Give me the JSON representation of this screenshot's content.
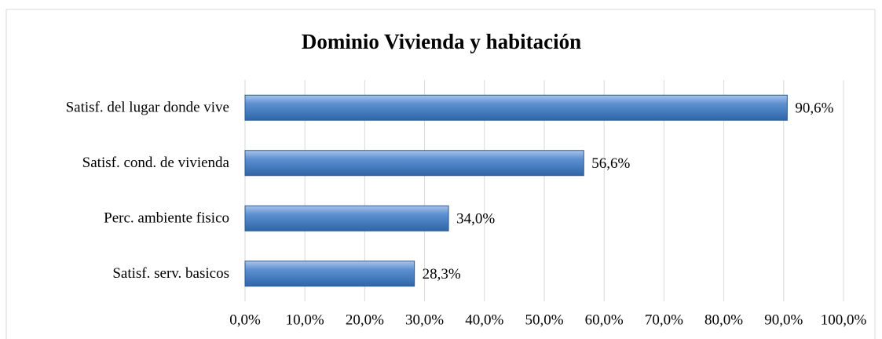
{
  "chart_data": {
    "type": "barh",
    "title": "Dominio Vivienda y habitación",
    "categories": [
      "Satisf. del lugar donde vive",
      "Satisf. cond. de vivienda",
      "Perc. ambiente fisico",
      "Satisf. serv. basicos"
    ],
    "values": [
      90.6,
      56.6,
      34.0,
      28.3
    ],
    "value_labels": [
      "90,6%",
      "56,6%",
      "34,0%",
      "28,3%"
    ],
    "color": "#4f81bd",
    "xlim": [
      0,
      100
    ],
    "xticks": [
      {
        "value": 0,
        "label": "0,0%"
      },
      {
        "value": 10,
        "label": "10,0%"
      },
      {
        "value": 20,
        "label": "20,0%"
      },
      {
        "value": 30,
        "label": "30,0%"
      },
      {
        "value": 40,
        "label": "40,0%"
      },
      {
        "value": 50,
        "label": "50,0%"
      },
      {
        "value": 60,
        "label": "60,0%"
      },
      {
        "value": 70,
        "label": "70,0%"
      },
      {
        "value": 80,
        "label": "80,0%"
      },
      {
        "value": 90,
        "label": "90,0%"
      },
      {
        "value": 100,
        "label": "100,0%"
      }
    ],
    "grid": true
  }
}
